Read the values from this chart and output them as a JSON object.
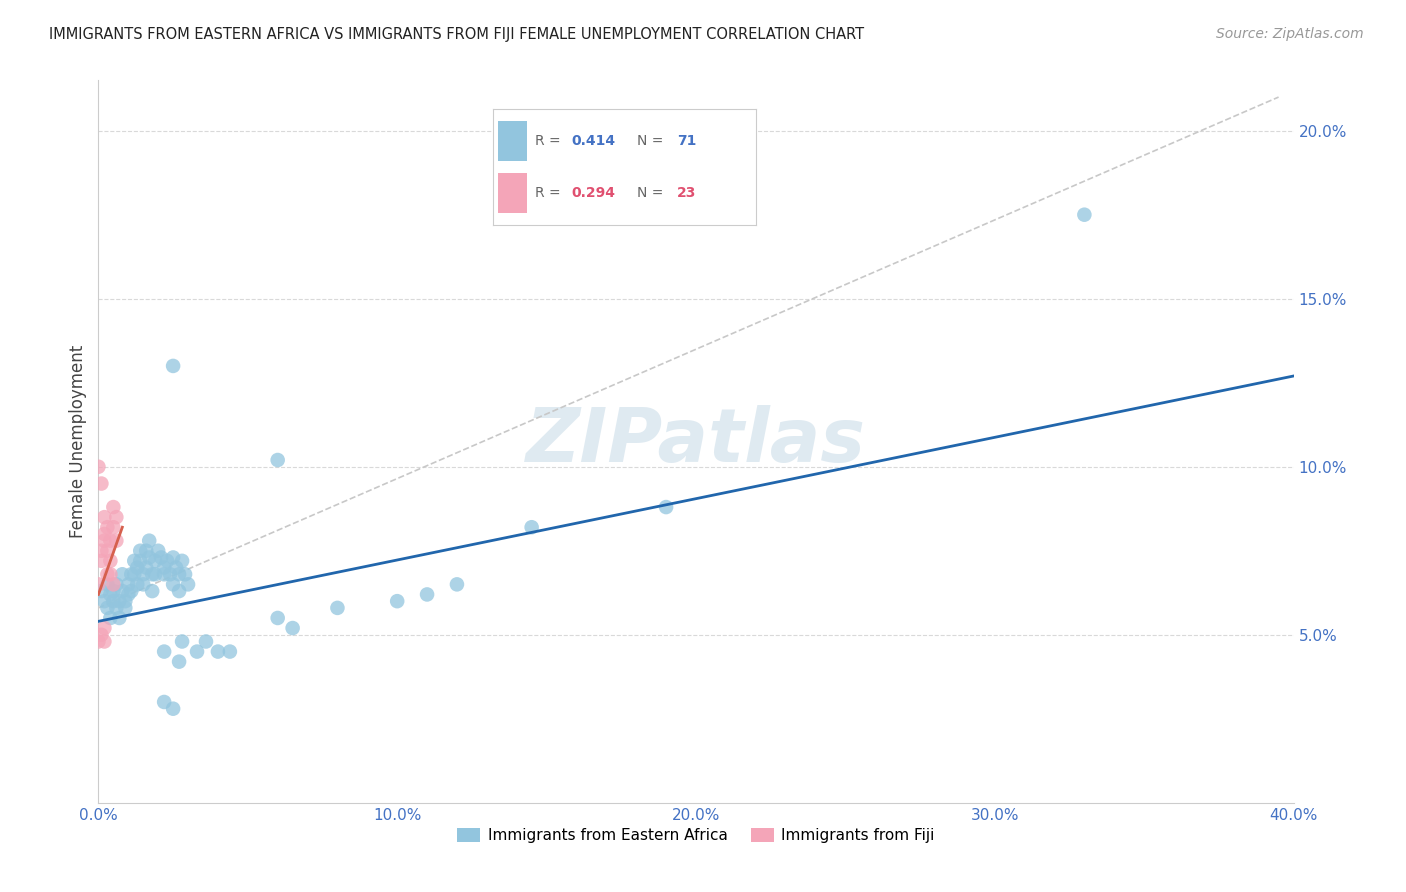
{
  "title": "IMMIGRANTS FROM EASTERN AFRICA VS IMMIGRANTS FROM FIJI FEMALE UNEMPLOYMENT CORRELATION CHART",
  "source": "Source: ZipAtlas.com",
  "xlabel_label": "Immigrants from Eastern Africa",
  "ylabel_label": "Female Unemployment",
  "xlabel2_label": "Immigrants from Fiji",
  "x_min": 0.0,
  "x_max": 0.4,
  "y_min": 0.0,
  "y_max": 0.215,
  "y_ticks": [
    0.05,
    0.1,
    0.15,
    0.2
  ],
  "x_ticks": [
    0.0,
    0.1,
    0.2,
    0.3,
    0.4
  ],
  "x_tick_labels": [
    "0.0%",
    "10.0%",
    "20.0%",
    "30.0%",
    "40.0%"
  ],
  "y_tick_labels": [
    "5.0%",
    "10.0%",
    "15.0%",
    "20.0%"
  ],
  "blue_color": "#92c5de",
  "pink_color": "#f4a5b8",
  "blue_line_color": "#2166ac",
  "pink_line_color": "#d6604d",
  "dashed_line_color": "#c8c8c8",
  "watermark_color": "#dce8f0",
  "blue_scatter": [
    [
      0.001,
      0.063
    ],
    [
      0.002,
      0.06
    ],
    [
      0.003,
      0.058
    ],
    [
      0.003,
      0.065
    ],
    [
      0.004,
      0.062
    ],
    [
      0.004,
      0.055
    ],
    [
      0.005,
      0.063
    ],
    [
      0.005,
      0.06
    ],
    [
      0.006,
      0.058
    ],
    [
      0.006,
      0.065
    ],
    [
      0.007,
      0.06
    ],
    [
      0.007,
      0.055
    ],
    [
      0.008,
      0.063
    ],
    [
      0.008,
      0.068
    ],
    [
      0.009,
      0.06
    ],
    [
      0.009,
      0.058
    ],
    [
      0.01,
      0.062
    ],
    [
      0.01,
      0.065
    ],
    [
      0.011,
      0.068
    ],
    [
      0.011,
      0.063
    ],
    [
      0.012,
      0.072
    ],
    [
      0.012,
      0.068
    ],
    [
      0.013,
      0.07
    ],
    [
      0.013,
      0.065
    ],
    [
      0.014,
      0.075
    ],
    [
      0.014,
      0.072
    ],
    [
      0.015,
      0.068
    ],
    [
      0.015,
      0.065
    ],
    [
      0.016,
      0.075
    ],
    [
      0.016,
      0.07
    ],
    [
      0.017,
      0.078
    ],
    [
      0.017,
      0.073
    ],
    [
      0.018,
      0.068
    ],
    [
      0.018,
      0.063
    ],
    [
      0.019,
      0.072
    ],
    [
      0.019,
      0.068
    ],
    [
      0.02,
      0.075
    ],
    [
      0.021,
      0.073
    ],
    [
      0.022,
      0.07
    ],
    [
      0.022,
      0.068
    ],
    [
      0.023,
      0.072
    ],
    [
      0.024,
      0.068
    ],
    [
      0.025,
      0.065
    ],
    [
      0.025,
      0.073
    ],
    [
      0.026,
      0.07
    ],
    [
      0.027,
      0.068
    ],
    [
      0.027,
      0.063
    ],
    [
      0.028,
      0.072
    ],
    [
      0.029,
      0.068
    ],
    [
      0.03,
      0.065
    ],
    [
      0.022,
      0.045
    ],
    [
      0.027,
      0.042
    ],
    [
      0.028,
      0.048
    ],
    [
      0.033,
      0.045
    ],
    [
      0.036,
      0.048
    ],
    [
      0.04,
      0.045
    ],
    [
      0.044,
      0.045
    ],
    [
      0.022,
      0.03
    ],
    [
      0.025,
      0.028
    ],
    [
      0.06,
      0.055
    ],
    [
      0.065,
      0.052
    ],
    [
      0.08,
      0.058
    ],
    [
      0.1,
      0.06
    ],
    [
      0.11,
      0.062
    ],
    [
      0.12,
      0.065
    ],
    [
      0.025,
      0.13
    ],
    [
      0.06,
      0.102
    ],
    [
      0.145,
      0.082
    ],
    [
      0.19,
      0.088
    ],
    [
      0.33,
      0.175
    ]
  ],
  "pink_scatter": [
    [
      0.0,
      0.065
    ],
    [
      0.001,
      0.075
    ],
    [
      0.001,
      0.072
    ],
    [
      0.002,
      0.08
    ],
    [
      0.002,
      0.085
    ],
    [
      0.002,
      0.078
    ],
    [
      0.003,
      0.082
    ],
    [
      0.003,
      0.075
    ],
    [
      0.003,
      0.068
    ],
    [
      0.004,
      0.078
    ],
    [
      0.004,
      0.072
    ],
    [
      0.004,
      0.068
    ],
    [
      0.005,
      0.088
    ],
    [
      0.005,
      0.082
    ],
    [
      0.006,
      0.085
    ],
    [
      0.006,
      0.078
    ],
    [
      0.0,
      0.1
    ],
    [
      0.001,
      0.095
    ],
    [
      0.0,
      0.048
    ],
    [
      0.001,
      0.05
    ],
    [
      0.002,
      0.048
    ],
    [
      0.002,
      0.052
    ],
    [
      0.005,
      0.065
    ]
  ],
  "blue_line": [
    [
      0.0,
      0.054
    ],
    [
      0.4,
      0.127
    ]
  ],
  "pink_line": [
    [
      0.0,
      0.062
    ],
    [
      0.008,
      0.082
    ]
  ],
  "dashed_line": [
    [
      0.0,
      0.058
    ],
    [
      0.395,
      0.21
    ]
  ]
}
